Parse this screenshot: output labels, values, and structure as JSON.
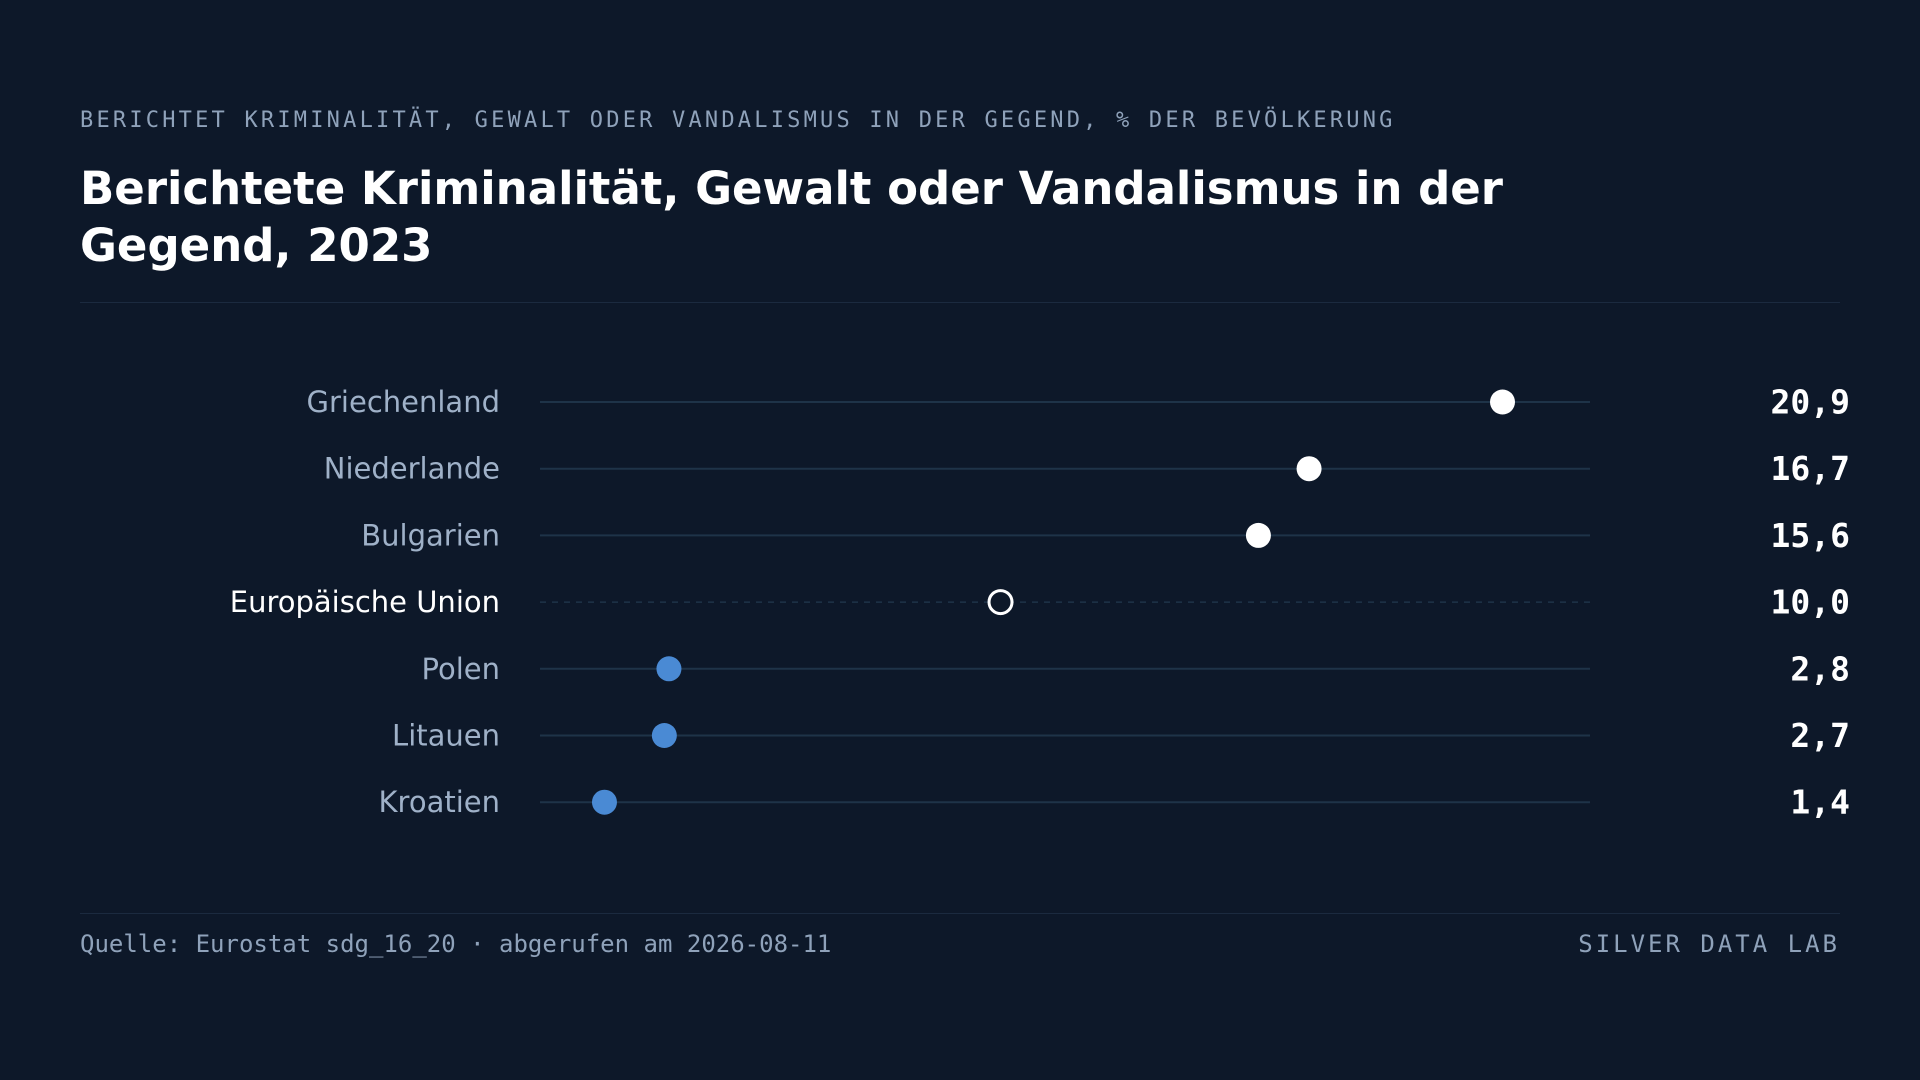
{
  "header": {
    "kicker": "BERICHTET KRIMINALITÄT, GEWALT ODER VANDALISMUS IN DER GEGEND, % DER BEVÖLKERUNG",
    "title": "Berichtete Kriminalität, Gewalt oder Vandalismus in der Gegend, 2023"
  },
  "footer": {
    "source": "Quelle: Eurostat sdg_16_20 · abgerufen am 2026-08-11",
    "brand": "SILVER DATA LAB"
  },
  "colors": {
    "background": "#0d1829",
    "high_dot": "#ffffff",
    "low_dot": "#4a8ad4",
    "reference_dot_stroke": "#ffffff",
    "track_line": "#1e3348",
    "label_text": "#9fb1c8",
    "reference_label_text": "#ffffff",
    "value_text": "#ffffff"
  },
  "chart_data": {
    "type": "dot",
    "title": "Berichtete Kriminalität, Gewalt oder Vandalismus in der Gegend, 2023",
    "unit": "% der Bevölkerung",
    "xlim": [
      0,
      22.8
    ],
    "categories": [
      "Griechenland",
      "Niederlande",
      "Bulgarien",
      "Europäische Union",
      "Polen",
      "Litauen",
      "Kroatien"
    ],
    "values": [
      20.9,
      16.7,
      15.6,
      10.0,
      2.8,
      2.7,
      1.4
    ],
    "value_labels": [
      "20,9",
      "16,7",
      "15,6",
      "10,0",
      "2,8",
      "2,7",
      "1,4"
    ],
    "reference_category": "Europäische Union",
    "groups": [
      "high",
      "high",
      "high",
      "reference",
      "low",
      "low",
      "low"
    ]
  }
}
